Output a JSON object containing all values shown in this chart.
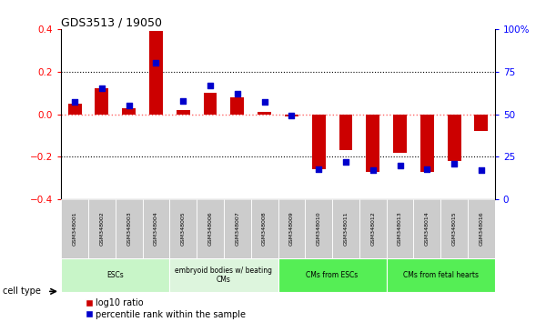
{
  "title": "GDS3513 / 19050",
  "samples": [
    "GSM348001",
    "GSM348002",
    "GSM348003",
    "GSM348004",
    "GSM348005",
    "GSM348006",
    "GSM348007",
    "GSM348008",
    "GSM348009",
    "GSM348010",
    "GSM348011",
    "GSM348012",
    "GSM348013",
    "GSM348014",
    "GSM348015",
    "GSM348016"
  ],
  "log10_ratio": [
    0.05,
    0.12,
    0.03,
    0.39,
    0.02,
    0.1,
    0.08,
    0.01,
    -0.01,
    -0.26,
    -0.17,
    -0.27,
    -0.18,
    -0.27,
    -0.22,
    -0.08
  ],
  "percentile_rank": [
    57,
    65,
    55,
    80,
    58,
    67,
    62,
    57,
    49,
    18,
    22,
    17,
    20,
    18,
    21,
    17
  ],
  "cell_types": [
    {
      "label": "ESCs",
      "start": 0,
      "end": 3,
      "color": "#c8f5c8"
    },
    {
      "label": "embryoid bodies w/ beating\nCMs",
      "start": 4,
      "end": 7,
      "color": "#ddf5dd"
    },
    {
      "label": "CMs from ESCs",
      "start": 8,
      "end": 11,
      "color": "#55ee55"
    },
    {
      "label": "CMs from fetal hearts",
      "start": 12,
      "end": 15,
      "color": "#55ee55"
    }
  ],
  "ylim_left": [
    -0.4,
    0.4
  ],
  "ylim_right": [
    0,
    100
  ],
  "yticks_left": [
    -0.4,
    -0.2,
    0.0,
    0.2,
    0.4
  ],
  "yticks_right": [
    0,
    25,
    50,
    75,
    100
  ],
  "bar_color_red": "#cc0000",
  "bar_color_blue": "#0000cc",
  "zero_line_color": "#ff6666",
  "grid_dotted_color": "#000000",
  "background_color": "#ffffff",
  "sample_box_color": "#cccccc",
  "legend_red_label": "log10 ratio",
  "legend_blue_label": "percentile rank within the sample",
  "cell_type_label": "cell type"
}
